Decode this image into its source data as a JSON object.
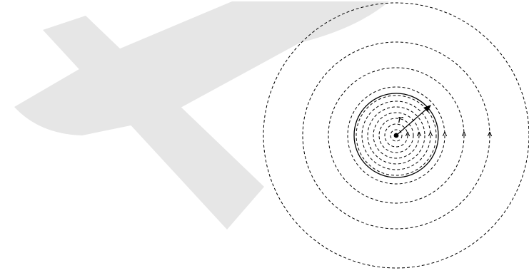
{
  "diagram": {
    "radius_label": "r",
    "colors": {
      "ink": "#000000",
      "watermark": "#e6e6e6",
      "background": "#ffffff"
    }
  }
}
